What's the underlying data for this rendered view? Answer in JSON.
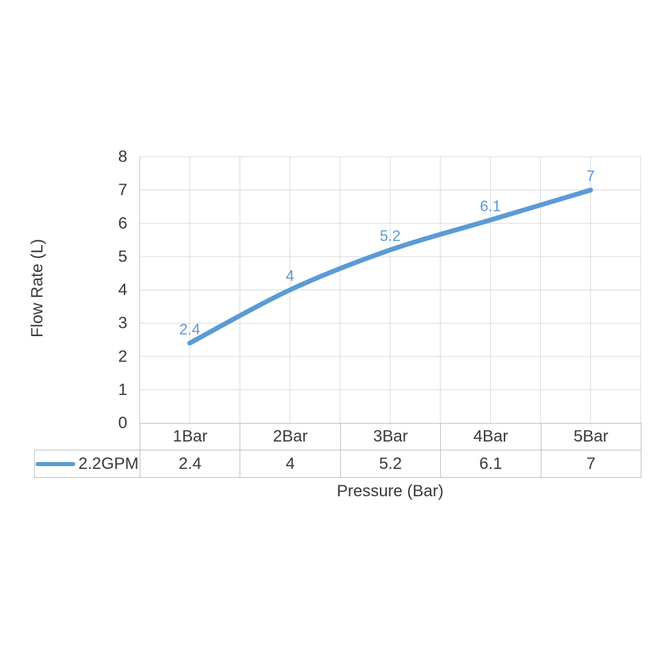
{
  "chart_data": {
    "type": "line",
    "smooth": true,
    "xlabel": "Pressure (Bar)",
    "ylabel": "Flow Rate (L)",
    "categories": [
      "1Bar",
      "2Bar",
      "3Bar",
      "4Bar",
      "5Bar"
    ],
    "series": [
      {
        "name": "2.2GPM",
        "values": [
          2.4,
          4,
          5.2,
          6.1,
          7
        ],
        "value_labels": [
          "2.4",
          "4",
          "5.2",
          "6.1",
          "7"
        ],
        "color": "#5B9BD5"
      }
    ],
    "ylim": [
      0,
      8
    ],
    "ytick_step": 1,
    "yticks": [
      "0",
      "1",
      "2",
      "3",
      "4",
      "5",
      "6",
      "7",
      "8"
    ],
    "grid": {
      "horizontal": "major",
      "vertical": "half-category"
    },
    "legend_position": "data-table-left",
    "data_table": true
  },
  "colors": {
    "series_line": "#5B9BD5",
    "data_label": "#5B9BD5",
    "gridline": "#D9D9D9",
    "axis_line": "#BFBFBF",
    "table_border": "#BFBFBF",
    "text": "#3A3A3A",
    "background": "#FFFFFF"
  }
}
